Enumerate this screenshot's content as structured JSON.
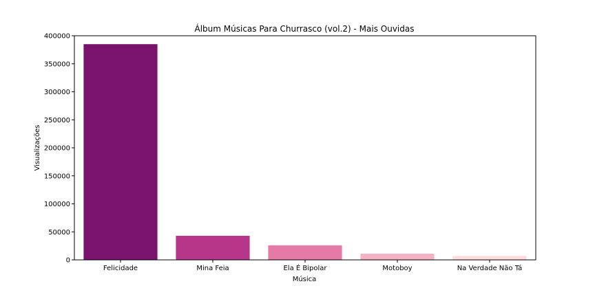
{
  "chart_data": {
    "type": "bar",
    "title": "Álbum Músicas Para Churrasco (vol.2) - Mais Ouvidas",
    "xlabel": "Música",
    "ylabel": "Visualizações",
    "categories": [
      "Felicidade",
      "Mina Feia",
      "Ela É Bipolar",
      "Motoboy",
      "Na Verdade Não Tá"
    ],
    "values": [
      385000,
      43000,
      26000,
      11000,
      7000
    ],
    "colors": [
      "#7a136b",
      "#b6368a",
      "#e57aa7",
      "#f3b3c4",
      "#fcdcdc"
    ],
    "ylim": [
      0,
      400000
    ],
    "yticks": [
      "0",
      "50000",
      "100000",
      "150000",
      "200000",
      "250000",
      "300000",
      "350000",
      "400000"
    ],
    "grid": false
  }
}
